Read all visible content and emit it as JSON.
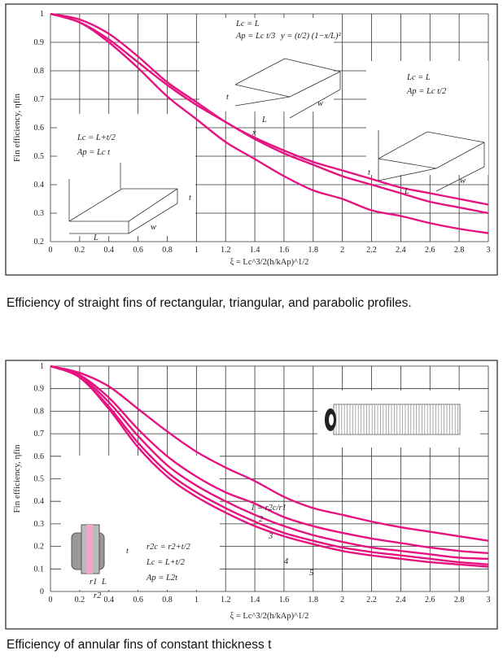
{
  "colors": {
    "curve": "#e6127f",
    "grid": "#333333",
    "frame": "#222222"
  },
  "chart_data": [
    {
      "type": "line",
      "caption": "Efficiency of straight fins of rectangular, triangular, and parabolic profiles.",
      "xlabel": "ξ = Lc^3/2(h/kAp)^1/2",
      "ylabel": "Fin efficiency, ηfin",
      "xlim": [
        0,
        3
      ],
      "ylim": [
        0.2,
        1
      ],
      "xticks": [
        "0",
        "0.2",
        "0.4",
        "0.6",
        "0.8",
        "1",
        "1.2",
        "1.4",
        "1.6",
        "1.8",
        "2",
        "2.2",
        "2.4",
        "2.6",
        "2.8",
        "3"
      ],
      "yticks": [
        "0.2",
        "0.3",
        "0.4",
        "0.5",
        "0.6",
        "0.7",
        "0.8",
        "0.9",
        "1"
      ],
      "grid": true,
      "x": [
        0,
        0.2,
        0.4,
        0.6,
        0.8,
        1,
        1.2,
        1.4,
        1.6,
        1.8,
        2,
        2.2,
        2.4,
        2.6,
        2.8,
        3
      ],
      "series": [
        {
          "values": [
            1,
            0.98,
            0.93,
            0.85,
            0.76,
            0.69,
            0.62,
            0.565,
            0.52,
            0.48,
            0.45,
            0.42,
            0.39,
            0.37,
            0.35,
            0.33
          ]
        },
        {
          "values": [
            1,
            0.97,
            0.91,
            0.83,
            0.75,
            0.68,
            0.62,
            0.56,
            0.51,
            0.47,
            0.43,
            0.4,
            0.37,
            0.34,
            0.32,
            0.3
          ]
        },
        {
          "values": [
            1,
            0.97,
            0.9,
            0.81,
            0.71,
            0.63,
            0.55,
            0.49,
            0.43,
            0.38,
            0.35,
            0.31,
            0.29,
            0.265,
            0.245,
            0.23
          ]
        }
      ],
      "annotations": {
        "rect_lc": "Lc = L+t/2",
        "rect_ap": "Ap = Lc t",
        "tri_lc": "Lc = L",
        "tri_ap": "Ap = Lc t/2",
        "para_lc": "Lc = L",
        "para_ap": "Ap = Lc t/3",
        "para_y": "y = (t/2) (1−x/L)²",
        "t": "t",
        "L": "L",
        "w": "w",
        "x": "x"
      }
    },
    {
      "type": "line",
      "caption": "Efficiency of annular fins of constant thickness t",
      "xlabel": "ξ = Lc^3/2(h/kAp)^1/2",
      "ylabel": "Fin efficiency, ηfin",
      "xlim": [
        0,
        3
      ],
      "ylim": [
        0,
        1
      ],
      "xticks": [
        "0",
        "0.2",
        "0.4",
        "0.6",
        "0.8",
        "1",
        "1.2",
        "1.4",
        "1.6",
        "1.8",
        "2",
        "2.2",
        "2.4",
        "2.6",
        "2.8",
        "3"
      ],
      "yticks": [
        "0",
        "0.1",
        "0.2",
        "0.3",
        "0.4",
        "0.5",
        "0.6",
        "0.7",
        "0.8",
        "0.9",
        "1"
      ],
      "grid": true,
      "x": [
        0,
        0.2,
        0.4,
        0.6,
        0.8,
        1,
        1.2,
        1.4,
        1.6,
        1.8,
        2,
        2.2,
        2.4,
        2.6,
        2.8,
        3
      ],
      "series": [
        {
          "name": "1 = r2c/r1",
          "values": [
            1,
            0.97,
            0.91,
            0.81,
            0.71,
            0.62,
            0.55,
            0.49,
            0.42,
            0.37,
            0.34,
            0.31,
            0.285,
            0.265,
            0.245,
            0.225
          ]
        },
        {
          "name": "2",
          "values": [
            1,
            0.96,
            0.86,
            0.72,
            0.6,
            0.51,
            0.44,
            0.39,
            0.33,
            0.29,
            0.26,
            0.235,
            0.215,
            0.195,
            0.18,
            0.17
          ]
        },
        {
          "name": "3",
          "values": [
            1,
            0.955,
            0.84,
            0.69,
            0.56,
            0.47,
            0.4,
            0.34,
            0.29,
            0.25,
            0.22,
            0.195,
            0.18,
            0.165,
            0.15,
            0.145
          ]
        },
        {
          "name": "4",
          "values": [
            1,
            0.95,
            0.82,
            0.66,
            0.53,
            0.44,
            0.37,
            0.31,
            0.26,
            0.225,
            0.195,
            0.175,
            0.16,
            0.145,
            0.13,
            0.12
          ]
        },
        {
          "name": "5",
          "values": [
            1,
            0.95,
            0.81,
            0.64,
            0.51,
            0.42,
            0.35,
            0.29,
            0.245,
            0.21,
            0.18,
            0.16,
            0.145,
            0.13,
            0.12,
            0.11
          ]
        }
      ],
      "annotations": {
        "r2c": "r2c = r2+t/2",
        "lc": "Lc = L+t/2",
        "ap": "Ap = L2t",
        "t": "t",
        "r1": "r1",
        "r2": "r2",
        "L": "L"
      }
    }
  ]
}
